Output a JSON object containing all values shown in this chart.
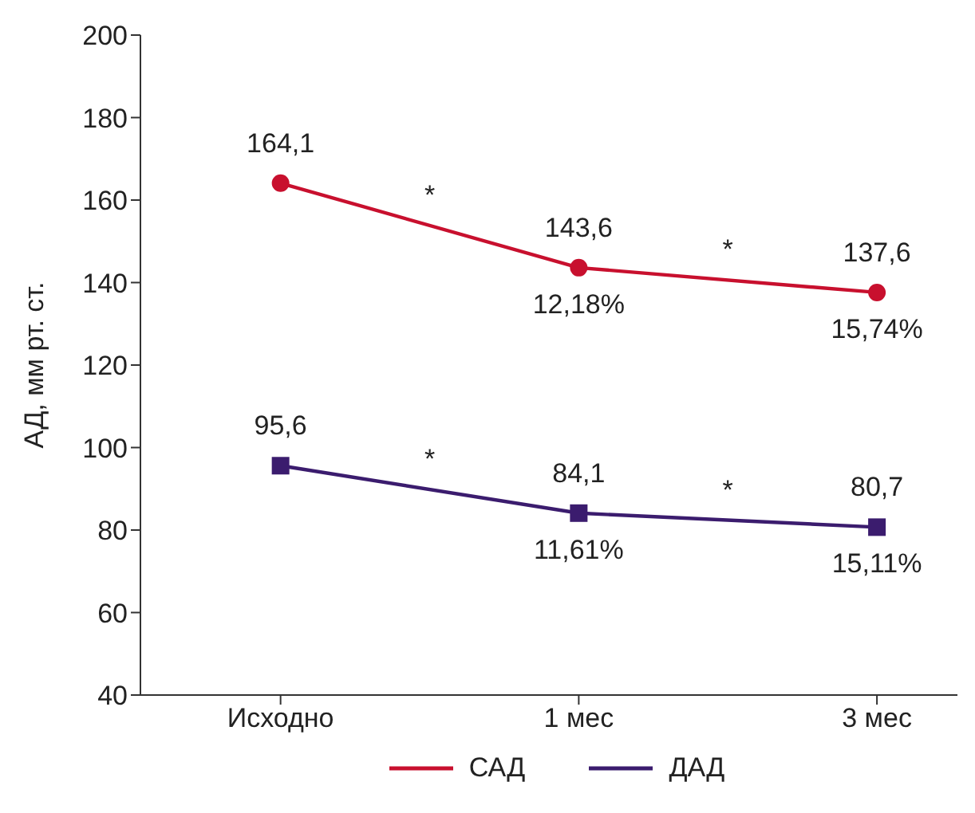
{
  "chart_data": {
    "type": "line",
    "ylabel": "АД, мм рт. ст.",
    "categories": [
      "Исходно",
      "1 мес",
      "3 мес"
    ],
    "series": [
      {
        "name": "САД",
        "color": "#c8102e",
        "marker": "circle",
        "values": [
          164.1,
          143.6,
          137.6
        ],
        "value_labels": [
          "164,1",
          "143,6",
          "137,6"
        ]
      },
      {
        "name": "ДАД",
        "color": "#3b1c6e",
        "marker": "square",
        "values": [
          95.6,
          84.1,
          80.7
        ],
        "value_labels": [
          "95,6",
          "84,1",
          "80,7"
        ]
      }
    ],
    "ylim": [
      40,
      200
    ],
    "yticks": [
      40,
      60,
      80,
      100,
      120,
      140,
      160,
      180,
      200
    ],
    "grid": false,
    "legend": "bottom",
    "annotations": [
      {
        "text": "12,18%",
        "x": "1 мес",
        "y": 143.6
      },
      {
        "text": "15,74%",
        "x": "3 мес",
        "y": 137.6
      },
      {
        "text": "11,61%",
        "x": "1 мес",
        "y": 84.1
      },
      {
        "text": "15,11%",
        "x": "3 мес",
        "y": 80.7
      },
      "*",
      "*",
      "*",
      "*"
    ]
  }
}
